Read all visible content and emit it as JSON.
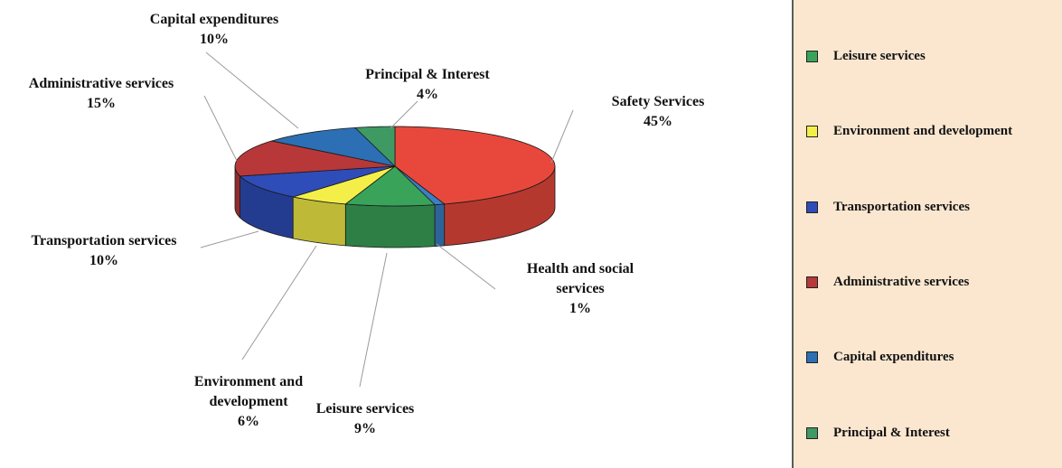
{
  "chart_data": {
    "type": "pie",
    "title": "",
    "slices": [
      {
        "label": "Safety Services",
        "label_lines": [
          "Safety Services"
        ],
        "percent_text": "45%",
        "value": 45,
        "color": "#e8483c"
      },
      {
        "label": "Health and social services",
        "label_lines": [
          "Health and social",
          "services"
        ],
        "percent_text": "1%",
        "value": 1,
        "color": "#3b7fc4"
      },
      {
        "label": "Leisure services",
        "label_lines": [
          "Leisure services"
        ],
        "percent_text": "9%",
        "value": 9,
        "color": "#3aa35a"
      },
      {
        "label": "Environment and development",
        "label_lines": [
          "Environment and",
          "development"
        ],
        "percent_text": "6%",
        "value": 6,
        "color": "#f4ef48"
      },
      {
        "label": "Transportation services",
        "label_lines": [
          "Transportation services"
        ],
        "percent_text": "10%",
        "value": 10,
        "color": "#2e4db8"
      },
      {
        "label": "Administrative services",
        "label_lines": [
          "Administrative services"
        ],
        "percent_text": "15%",
        "value": 15,
        "color": "#b8383a"
      },
      {
        "label": "Capital expenditures",
        "label_lines": [
          "Capital expenditures"
        ],
        "percent_text": "10%",
        "value": 10,
        "color": "#2c6fb4"
      },
      {
        "label": "Principal & Interest",
        "label_lines": [
          "Principal & Interest"
        ],
        "percent_text": "4%",
        "value": 4,
        "color": "#3e9a62"
      }
    ],
    "legend": {
      "placement": "right",
      "background": "#fbe7d0",
      "entries": [
        {
          "label": "Leisure services",
          "color": "#3aa35a"
        },
        {
          "label": "Environment and development",
          "color": "#f4ef48"
        },
        {
          "label": "Transportation services",
          "color": "#2e4db8"
        },
        {
          "label": "Administrative services",
          "color": "#b8383a"
        },
        {
          "label": "Capital expenditures",
          "color": "#2c6fb4"
        },
        {
          "label": "Principal & Interest",
          "color": "#3e9a62"
        }
      ]
    }
  }
}
